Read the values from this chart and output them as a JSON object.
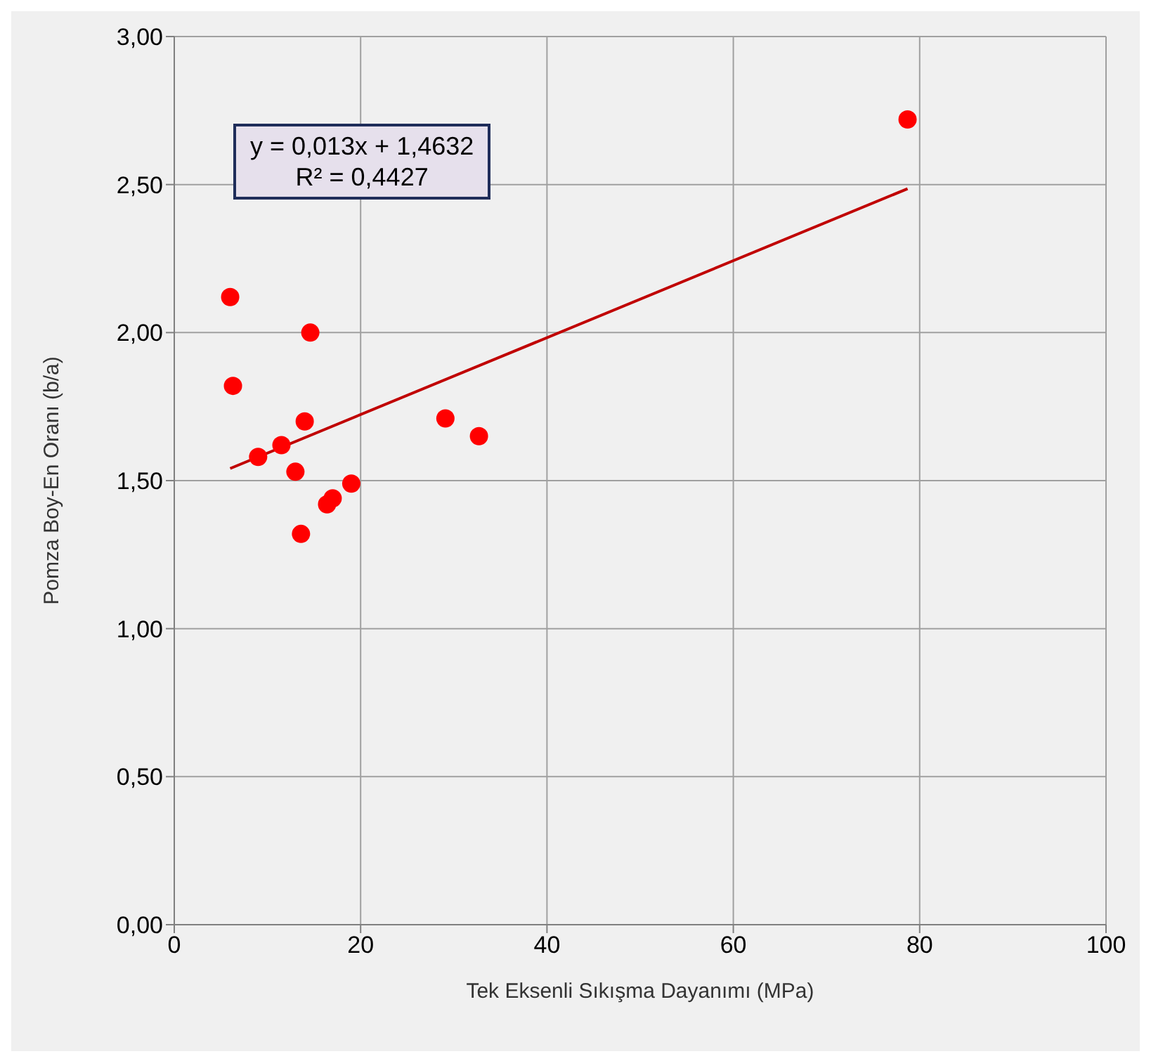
{
  "chart_data": {
    "type": "scatter",
    "xlabel": "Tek Eksenli Sıkışma Dayanımı (MPa)",
    "ylabel": "Pomza Boy-En Oranı (b/a)",
    "annotations": [
      "y = 0,013x + 1,4632",
      "R² = 0,4427"
    ],
    "series": [
      {
        "color": "#ff0000",
        "marker": "circle",
        "x": [
          6.0,
          6.3,
          14.6,
          9.0,
          11.5,
          14.0,
          13.0,
          13.6,
          16.4,
          17.0,
          19.0,
          29.1,
          32.7,
          78.7
        ],
        "values": [
          2.12,
          1.82,
          2.0,
          1.58,
          1.62,
          1.7,
          1.53,
          1.32,
          1.42,
          1.44,
          1.49,
          1.71,
          1.65,
          2.72
        ]
      },
      {
        "type": "line",
        "marker": "none",
        "color": "#c00000",
        "x": [
          6.0,
          78.7
        ],
        "values": [
          1.541,
          2.486
        ]
      }
    ],
    "grid": true,
    "xlim": [
      0,
      100
    ],
    "xticks": [
      0,
      20,
      40,
      60,
      80,
      100
    ],
    "ylim": [
      0,
      3
    ],
    "yticks": [
      {
        "value": 0,
        "label": "0,00"
      },
      {
        "value": 0.5,
        "label": "0,50"
      },
      {
        "value": 1,
        "label": "1,00"
      },
      {
        "value": 1.5,
        "label": "1,50"
      },
      {
        "value": 2,
        "label": "2,00"
      },
      {
        "value": 2.5,
        "label": "2,50"
      },
      {
        "value": 3,
        "label": "3,00"
      }
    ]
  }
}
